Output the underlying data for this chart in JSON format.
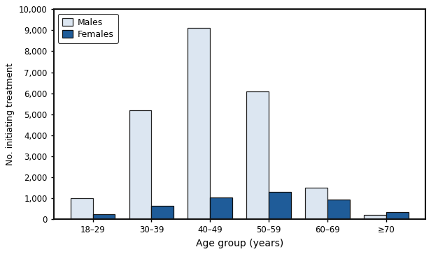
{
  "categories": [
    "18–29",
    "30–39",
    "40–49",
    "50–59",
    "60–69",
    "≥70"
  ],
  "males": [
    1000,
    5200,
    9100,
    6100,
    1500,
    200
  ],
  "females": [
    250,
    650,
    1050,
    1300,
    950,
    350
  ],
  "male_color": "#dce6f1",
  "female_color": "#1f5c99",
  "male_edge": "#222222",
  "female_edge": "#111111",
  "ylabel": "No. initiating treatment",
  "xlabel": "Age group (years)",
  "ylim": [
    0,
    10000
  ],
  "yticks": [
    0,
    1000,
    2000,
    3000,
    4000,
    5000,
    6000,
    7000,
    8000,
    9000,
    10000
  ],
  "legend_males": "Males",
  "legend_females": "Females",
  "bar_width": 0.38,
  "figsize": [
    6.16,
    3.64
  ],
  "dpi": 100,
  "spine_linewidth": 1.5,
  "tick_labelsize": 8.5,
  "xlabel_fontsize": 10,
  "ylabel_fontsize": 9
}
